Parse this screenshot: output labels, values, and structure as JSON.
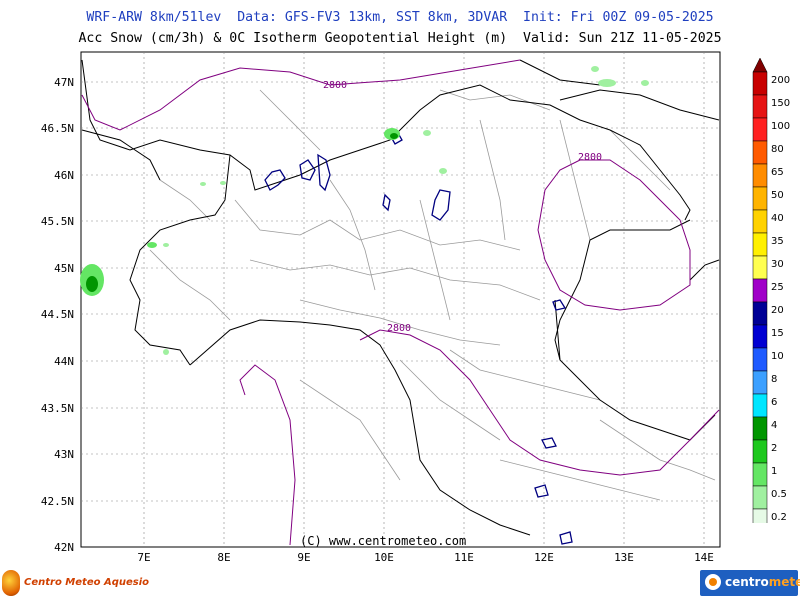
{
  "header": {
    "line1": "WRF-ARW 8km/51lev  Data: GFS-FV3 13km, SST 8km, 3DVAR  Init: Fri 00Z 09-05-2025",
    "line2": "Acc Snow (cm/3h) & 0C Isotherm Geopotential Height (m)  Valid: Sun 21Z 11-05-2025"
  },
  "axes": {
    "lat_labels": [
      "47N",
      "46.5N",
      "46N",
      "45.5N",
      "45N",
      "44.5N",
      "44N",
      "43.5N",
      "43N",
      "42.5N",
      "42N"
    ],
    "lon_labels": [
      "7E",
      "8E",
      "9E",
      "10E",
      "11E",
      "12E",
      "13E",
      "14E"
    ]
  },
  "contour_label": "2800",
  "copyright": "(C) www.centrometeo.com",
  "colorbar": {
    "labels": [
      "200",
      "150",
      "100",
      "80",
      "65",
      "50",
      "40",
      "35",
      "30",
      "25",
      "20",
      "15",
      "10",
      "8",
      "6",
      "4",
      "2",
      "1",
      "0.5",
      "0.2"
    ],
    "colors": [
      "#c80000",
      "#e61414",
      "#ff2020",
      "#ff5a00",
      "#ff8c00",
      "#ffb400",
      "#ffd200",
      "#fff000",
      "#ffff50",
      "#a000c8",
      "#000096",
      "#0000d2",
      "#1e5aff",
      "#3ca0ff",
      "#00e6ff",
      "#009600",
      "#1ec81e",
      "#64e664",
      "#a0f0a0",
      "#e6fae6"
    ]
  },
  "logos": {
    "left_text": "Centro Meteo Aquesio",
    "right_text_a": "centro",
    "right_text_b": "meteo"
  },
  "colors": {
    "header_blue": "#1f3fbf",
    "isotherm": "#800080",
    "lakes": "#000080",
    "borders": "#000000",
    "regions": "#999999"
  }
}
